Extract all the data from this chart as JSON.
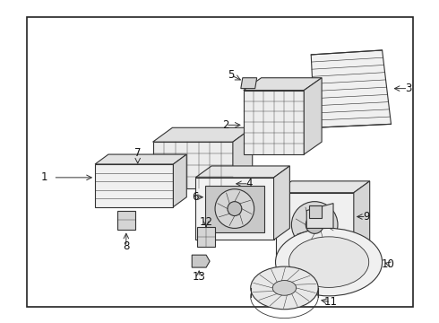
{
  "bg_color": "#ffffff",
  "border_color": "#222222",
  "line_color": "#333333",
  "figsize": [
    4.9,
    3.6
  ],
  "dpi": 100,
  "border": [
    0.06,
    0.05,
    0.97,
    0.97
  ],
  "label_fontsize": 8.5
}
